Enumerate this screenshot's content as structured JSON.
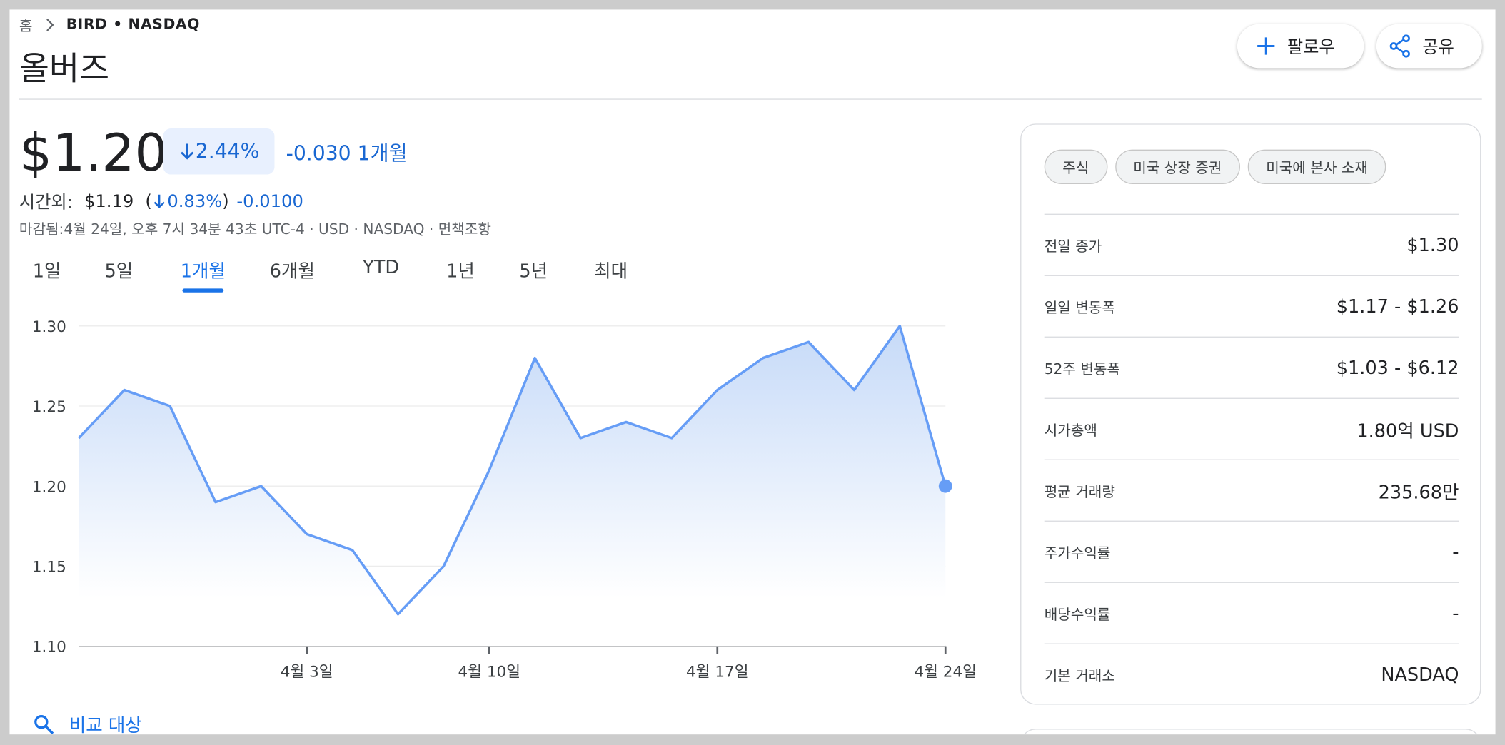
{
  "breadcrumb": {
    "home": "홈",
    "ticker": "BIRD • NASDAQ"
  },
  "title": "올버즈",
  "buttons": {
    "follow": "팔로우",
    "share": "공유"
  },
  "price": {
    "current": "$1.20",
    "change_pct": "2.44%",
    "change_abs": "-0.030",
    "period": "1개월"
  },
  "after_hours": {
    "label": "시간외:",
    "price": "$1.19",
    "open": "(",
    "change_pct": "0.83%",
    "close": ")",
    "change_abs": "-0.0100"
  },
  "closing_note": "마감됨:4월 24일, 오후 7시 34분 43초 UTC-4 · USD · NASDAQ · 면책조항",
  "tabs": {
    "items": [
      "1일",
      "5일",
      "1개월",
      "6개월",
      "YTD",
      "1년",
      "5년",
      "최대"
    ],
    "selected": 2
  },
  "chart_data": {
    "type": "line",
    "categories": [
      null,
      null,
      null,
      null,
      null,
      "4월 3일",
      null,
      null,
      null,
      "4월 10일",
      null,
      null,
      null,
      null,
      "4월 17일",
      null,
      null,
      null,
      null,
      "4월 24일"
    ],
    "values": [
      1.23,
      1.26,
      1.25,
      1.19,
      1.2,
      1.17,
      1.16,
      1.12,
      1.15,
      1.21,
      1.28,
      1.23,
      1.24,
      1.23,
      1.26,
      1.28,
      1.29,
      1.26,
      1.3,
      1.2
    ],
    "color": "#669df6",
    "ylim": [
      1.1,
      1.3
    ],
    "yticks": [
      {
        "value": 1.1,
        "label": "1.10"
      },
      1.15,
      {
        "value": 1.2,
        "label": "1.20"
      },
      1.25,
      {
        "value": 1.3,
        "label": "1.30"
      }
    ],
    "grid": true
  },
  "compare": "비교 대상",
  "side": {
    "chips": [
      "주식",
      "미국 상장 증권",
      "미국에 본사 소재"
    ],
    "rows": [
      [
        "전일 종가",
        "$1.30"
      ],
      [
        "일일 변동폭",
        "$1.17 - $1.26"
      ],
      [
        "52주 변동폭",
        "$1.03 - $6.12"
      ],
      [
        "시가총액",
        "1.80억 USD"
      ],
      [
        "평균 거래량",
        "235.68만"
      ],
      [
        "주가수익률",
        "-"
      ],
      [
        "배당수익률",
        "-"
      ],
      [
        "기본 거래소",
        "NASDAQ"
      ]
    ]
  }
}
